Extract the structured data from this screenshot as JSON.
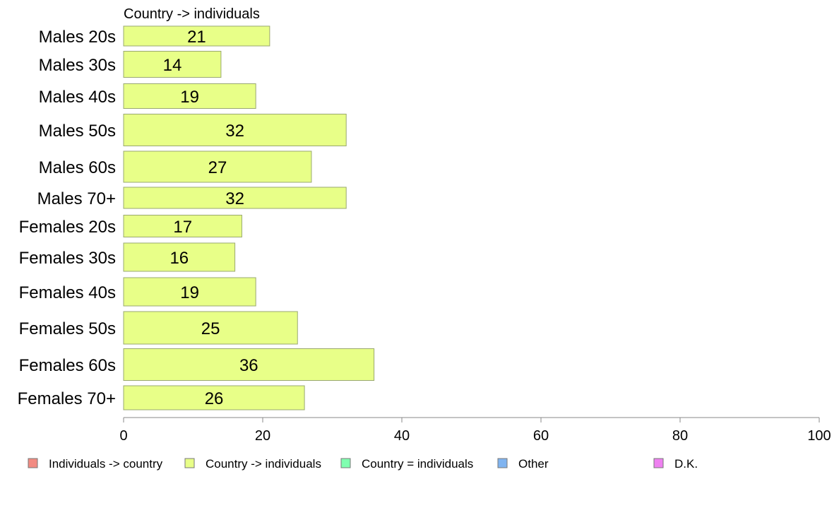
{
  "chart_data": {
    "type": "bar",
    "orientation": "horizontal",
    "panel_title": "Country -> individuals",
    "categories": [
      "Males 20s",
      "Males 30s",
      "Males 40s",
      "Males 50s",
      "Males 60s",
      "Males 70+",
      "Females 20s",
      "Females 30s",
      "Females 40s",
      "Females 50s",
      "Females 60s",
      "Females 70+"
    ],
    "series": [
      {
        "name": "Country -> individuals",
        "color": "#e8ff88",
        "values": [
          21,
          14,
          19,
          32,
          27,
          32,
          17,
          16,
          19,
          25,
          36,
          26
        ]
      }
    ],
    "xlim": [
      0,
      100
    ],
    "xticks": [
      0,
      20,
      40,
      60,
      80,
      100
    ],
    "grid": false,
    "legend_placement": "bottom",
    "legend": [
      {
        "label": "Individuals -> country",
        "color": "#f28b82"
      },
      {
        "label": "Country -> individuals",
        "color": "#e8ff88"
      },
      {
        "label": "Country = individuals",
        "color": "#80ffb0"
      },
      {
        "label": "Other",
        "color": "#80b4f0"
      },
      {
        "label": "D.K.",
        "color": "#ee80f0"
      }
    ]
  }
}
